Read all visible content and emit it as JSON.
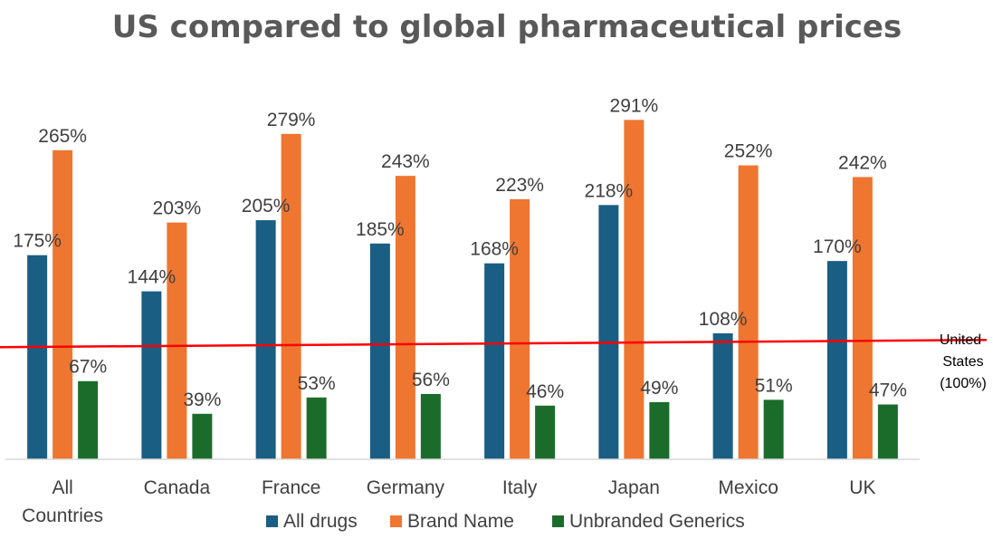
{
  "chart_data": {
    "type": "bar",
    "title": "US compared to global pharmaceutical prices",
    "categories": [
      "All Countries",
      "Canada",
      "France",
      "Germany",
      "Italy",
      "Japan",
      "Mexico",
      "UK"
    ],
    "category_lines": [
      [
        "All",
        "Countries"
      ],
      [
        "Canada"
      ],
      [
        "France"
      ],
      [
        "Germany"
      ],
      [
        "Italy"
      ],
      [
        "Japan"
      ],
      [
        "Mexico"
      ],
      [
        "UK"
      ]
    ],
    "series": [
      {
        "name": "All drugs",
        "color": "#1a5e84",
        "values": [
          175,
          144,
          205,
          185,
          168,
          218,
          108,
          170
        ]
      },
      {
        "name": "Brand Name",
        "color": "#ee7631",
        "values": [
          265,
          203,
          279,
          243,
          223,
          291,
          252,
          242
        ]
      },
      {
        "name": "Unbranded Generics",
        "color": "#1b6c2a",
        "values": [
          67,
          39,
          53,
          56,
          46,
          49,
          51,
          47
        ]
      }
    ],
    "value_suffix": "%",
    "ylim": [
      0,
      320
    ],
    "reference_line": {
      "value": 100,
      "color": "#ff0000",
      "label_lines": [
        "United",
        "States",
        "(100%)"
      ]
    },
    "legend_position": "bottom",
    "xlabel": "",
    "ylabel": ""
  }
}
